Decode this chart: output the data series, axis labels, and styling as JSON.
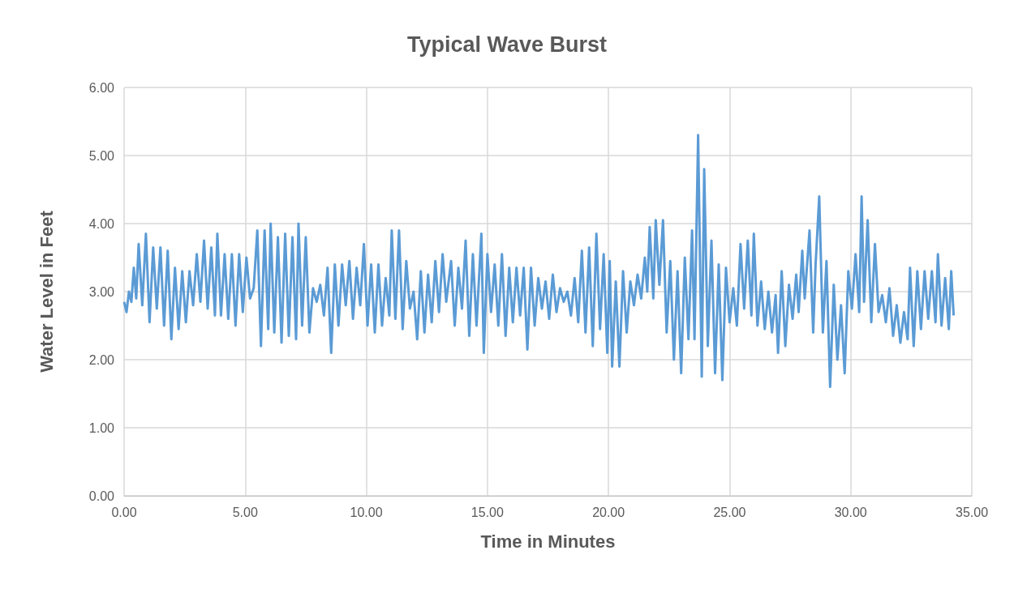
{
  "chart_data": {
    "type": "line",
    "title": "Typical Wave Burst",
    "xlabel": "Time in Minutes",
    "ylabel": "Water Level in Feet",
    "xlim": [
      0,
      35
    ],
    "ylim": [
      0,
      6
    ],
    "xticks": [
      {
        "value": 0,
        "label": "0.00"
      },
      {
        "value": 5,
        "label": "5.00"
      },
      {
        "value": 10,
        "label": "10.00"
      },
      {
        "value": 15,
        "label": "15.00"
      },
      {
        "value": 20,
        "label": "20.00"
      },
      {
        "value": 25,
        "label": "25.00"
      },
      {
        "value": 30,
        "label": "30.00"
      },
      {
        "value": 35,
        "label": "35.00"
      }
    ],
    "yticks": [
      {
        "value": 0,
        "label": "0.00"
      },
      {
        "value": 1,
        "label": "1.00"
      },
      {
        "value": 2,
        "label": "2.00"
      },
      {
        "value": 3,
        "label": "3.00"
      },
      {
        "value": 4,
        "label": "4.00"
      },
      {
        "value": 5,
        "label": "5.00"
      },
      {
        "value": 6,
        "label": "6.00"
      }
    ],
    "grid": true,
    "marker": "none",
    "line_style": "solid",
    "series": [
      {
        "color": "#5b9bd5",
        "x": [
          0,
          0.1,
          0.2,
          0.3,
          0.4,
          0.5,
          0.6,
          0.75,
          0.9,
          1.05,
          1.2,
          1.35,
          1.5,
          1.65,
          1.8,
          1.95,
          2.1,
          2.25,
          2.4,
          2.55,
          2.7,
          2.85,
          3,
          3.15,
          3.3,
          3.45,
          3.6,
          3.75,
          3.85,
          4,
          4.15,
          4.3,
          4.45,
          4.6,
          4.75,
          4.9,
          5.05,
          5.2,
          5.35,
          5.5,
          5.65,
          5.8,
          5.95,
          6.05,
          6.2,
          6.35,
          6.5,
          6.65,
          6.8,
          6.95,
          7.1,
          7.2,
          7.35,
          7.5,
          7.65,
          7.8,
          7.95,
          8.1,
          8.25,
          8.4,
          8.55,
          8.7,
          8.85,
          9,
          9.15,
          9.3,
          9.45,
          9.6,
          9.75,
          9.9,
          10.05,
          10.2,
          10.35,
          10.5,
          10.65,
          10.8,
          10.95,
          11.05,
          11.2,
          11.35,
          11.5,
          11.65,
          11.8,
          11.95,
          12.1,
          12.25,
          12.4,
          12.55,
          12.7,
          12.85,
          13,
          13.15,
          13.3,
          13.5,
          13.65,
          13.8,
          13.95,
          14.1,
          14.25,
          14.4,
          14.55,
          14.75,
          14.85,
          15,
          15.15,
          15.3,
          15.45,
          15.6,
          15.75,
          15.9,
          16.05,
          16.2,
          16.35,
          16.5,
          16.65,
          16.8,
          16.95,
          17.1,
          17.25,
          17.4,
          17.55,
          17.7,
          17.85,
          18,
          18.15,
          18.3,
          18.45,
          18.6,
          18.75,
          18.9,
          19.05,
          19.2,
          19.35,
          19.5,
          19.65,
          19.8,
          19.95,
          20.05,
          20.15,
          20.3,
          20.45,
          20.6,
          20.75,
          20.9,
          21.05,
          21.2,
          21.35,
          21.5,
          21.6,
          21.7,
          21.85,
          21.95,
          22.1,
          22.25,
          22.4,
          22.55,
          22.7,
          22.85,
          23,
          23.15,
          23.3,
          23.45,
          23.55,
          23.7,
          23.85,
          23.95,
          24.1,
          24.25,
          24.4,
          24.55,
          24.7,
          24.85,
          25,
          25.15,
          25.3,
          25.45,
          25.6,
          25.75,
          25.9,
          26,
          26.15,
          26.3,
          26.45,
          26.6,
          26.75,
          26.9,
          27,
          27.15,
          27.3,
          27.45,
          27.6,
          27.75,
          27.85,
          28,
          28.1,
          28.3,
          28.45,
          28.55,
          28.7,
          28.85,
          29,
          29.15,
          29.3,
          29.45,
          29.6,
          29.75,
          29.9,
          30.05,
          30.2,
          30.35,
          30.45,
          30.55,
          30.7,
          30.85,
          31,
          31.15,
          31.3,
          31.45,
          31.6,
          31.75,
          31.9,
          32.05,
          32.2,
          32.35,
          32.45,
          32.6,
          32.75,
          32.9,
          33.05,
          33.2,
          33.35,
          33.5,
          33.6,
          33.75,
          33.9,
          34.05,
          34.15,
          34.25
        ],
        "values": [
          2.85,
          2.7,
          3,
          2.85,
          3.35,
          2.9,
          3.7,
          2.8,
          3.85,
          2.55,
          3.65,
          2.75,
          3.65,
          2.5,
          3.6,
          2.3,
          3.35,
          2.45,
          3.3,
          2.55,
          3.3,
          2.8,
          3.55,
          2.85,
          3.75,
          2.75,
          3.65,
          2.65,
          3.85,
          2.65,
          3.55,
          2.6,
          3.55,
          2.5,
          3.55,
          2.7,
          3.5,
          2.9,
          3.05,
          3.9,
          2.2,
          3.9,
          2.45,
          4,
          2.4,
          3.8,
          2.25,
          3.85,
          2.35,
          3.8,
          2.3,
          4,
          2.5,
          3.8,
          2.4,
          3.05,
          2.85,
          3.1,
          2.65,
          3.35,
          2.1,
          3.4,
          2.5,
          3.4,
          2.8,
          3.45,
          2.6,
          3.35,
          2.8,
          3.7,
          2.5,
          3.4,
          2.4,
          3.4,
          2.5,
          3.2,
          2.65,
          3.9,
          2.6,
          3.9,
          2.45,
          3.45,
          2.75,
          3,
          2.3,
          3.3,
          2.4,
          3.25,
          2.55,
          3.45,
          2.7,
          3.55,
          2.85,
          3.45,
          2.5,
          3.35,
          2.75,
          3.75,
          2.35,
          3.55,
          2.5,
          3.85,
          2.1,
          3.55,
          2.7,
          3.4,
          2.5,
          3.55,
          2.35,
          3.35,
          2.55,
          3.35,
          2.65,
          3.35,
          2.15,
          3.35,
          2.5,
          3.2,
          2.75,
          3.15,
          2.6,
          3.25,
          2.7,
          3.05,
          2.85,
          3,
          2.65,
          3.2,
          2.55,
          3.6,
          2.4,
          3.65,
          2.2,
          3.85,
          2.45,
          3.55,
          2.1,
          3.45,
          1.9,
          3.15,
          1.9,
          3.3,
          2.4,
          3.15,
          2.8,
          3.25,
          2.9,
          3.5,
          3,
          3.95,
          2.9,
          4.05,
          3.1,
          4.05,
          2.4,
          3.45,
          2,
          3.3,
          1.8,
          3.5,
          2.3,
          3.9,
          2.3,
          5.3,
          1.75,
          4.8,
          2.2,
          3.75,
          1.8,
          3.4,
          1.7,
          3.35,
          2.55,
          3.05,
          2.5,
          3.7,
          2.75,
          3.75,
          2.65,
          3.85,
          2.5,
          3.15,
          2.45,
          3,
          2.4,
          2.95,
          2.1,
          3.3,
          2.2,
          3.1,
          2.6,
          3.25,
          2.7,
          3.6,
          2.9,
          3.9,
          2.4,
          3.4,
          4.4,
          2.4,
          3.45,
          1.6,
          3.1,
          2,
          2.8,
          1.8,
          3.3,
          2.75,
          3.55,
          2.7,
          4.4,
          2.85,
          4.05,
          2.55,
          3.7,
          2.7,
          2.95,
          2.55,
          3.05,
          2.35,
          2.8,
          2.25,
          2.7,
          2.3,
          3.35,
          2.2,
          3.3,
          2.45,
          3.3,
          2.6,
          3.3,
          2.55,
          3.55,
          2.5,
          3.2,
          2.45,
          3.3,
          2.65
        ]
      }
    ]
  }
}
